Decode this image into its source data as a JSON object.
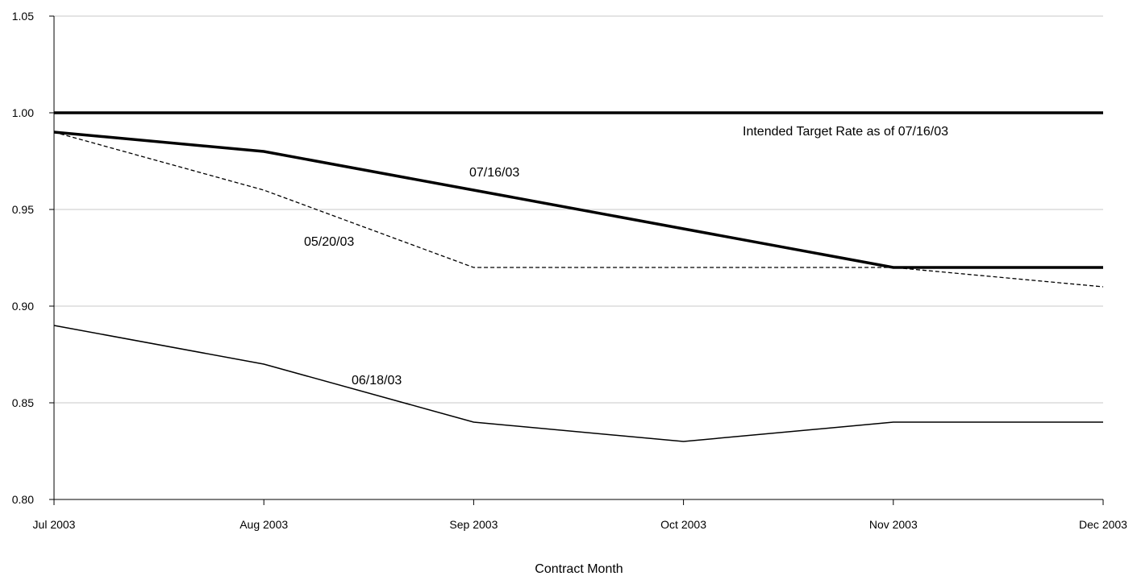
{
  "chart_data": {
    "type": "line",
    "xlabel": "Contract Month",
    "ylabel": "",
    "categories": [
      "Jul 2003",
      "Aug 2003",
      "Sep 2003",
      "Oct 2003",
      "Nov 2003",
      "Dec 2003"
    ],
    "ylim": [
      0.8,
      1.05
    ],
    "yticks": [
      "0.80",
      "0.85",
      "0.90",
      "0.95",
      "1.00",
      "1.05"
    ],
    "grid": true,
    "series": [
      {
        "name": "Intended Target Rate as of 07/16/03",
        "values": [
          1.0,
          1.0,
          1.0,
          1.0,
          1.0,
          1.0
        ],
        "style": "thick"
      },
      {
        "name": "07/16/03",
        "values": [
          0.99,
          0.98,
          0.96,
          0.94,
          0.92,
          0.92
        ],
        "style": "thick"
      },
      {
        "name": "05/20/03",
        "values": [
          0.99,
          0.96,
          0.92,
          0.92,
          0.92,
          0.91
        ],
        "style": "dashed"
      },
      {
        "name": "06/18/03",
        "values": [
          0.89,
          0.87,
          0.84,
          0.83,
          0.84,
          0.84
        ],
        "style": "thin"
      }
    ]
  }
}
